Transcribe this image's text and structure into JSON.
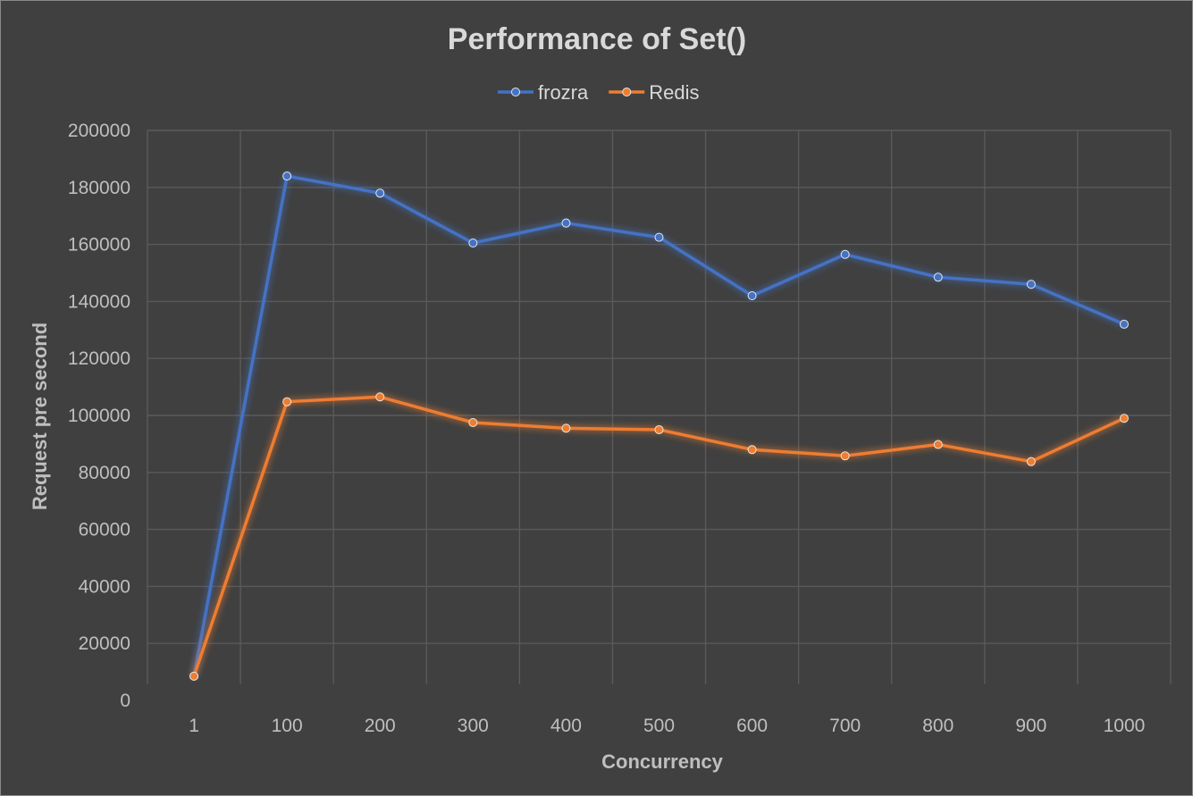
{
  "chart_data": {
    "type": "line",
    "title": "Performance of Set()",
    "xlabel": "Concurrency",
    "ylabel": "Request pre second",
    "categories": [
      "1",
      "100",
      "200",
      "300",
      "400",
      "500",
      "600",
      "700",
      "800",
      "900",
      "1000"
    ],
    "ylim": [
      0,
      200000
    ],
    "yticks": [
      "0",
      "20000",
      "40000",
      "60000",
      "80000",
      "100000",
      "120000",
      "140000",
      "160000",
      "180000",
      "200000"
    ],
    "grid": true,
    "legend_position": "top",
    "series": [
      {
        "name": "frozra",
        "color": "#4472c4",
        "values": [
          8500,
          184000,
          178000,
          160500,
          167500,
          162500,
          142000,
          156500,
          148500,
          146000,
          132000
        ]
      },
      {
        "name": "Redis",
        "color": "#ed7d31",
        "values": [
          8500,
          104800,
          106500,
          97500,
          95500,
          95000,
          88000,
          85800,
          89800,
          83800,
          99000
        ]
      }
    ]
  }
}
